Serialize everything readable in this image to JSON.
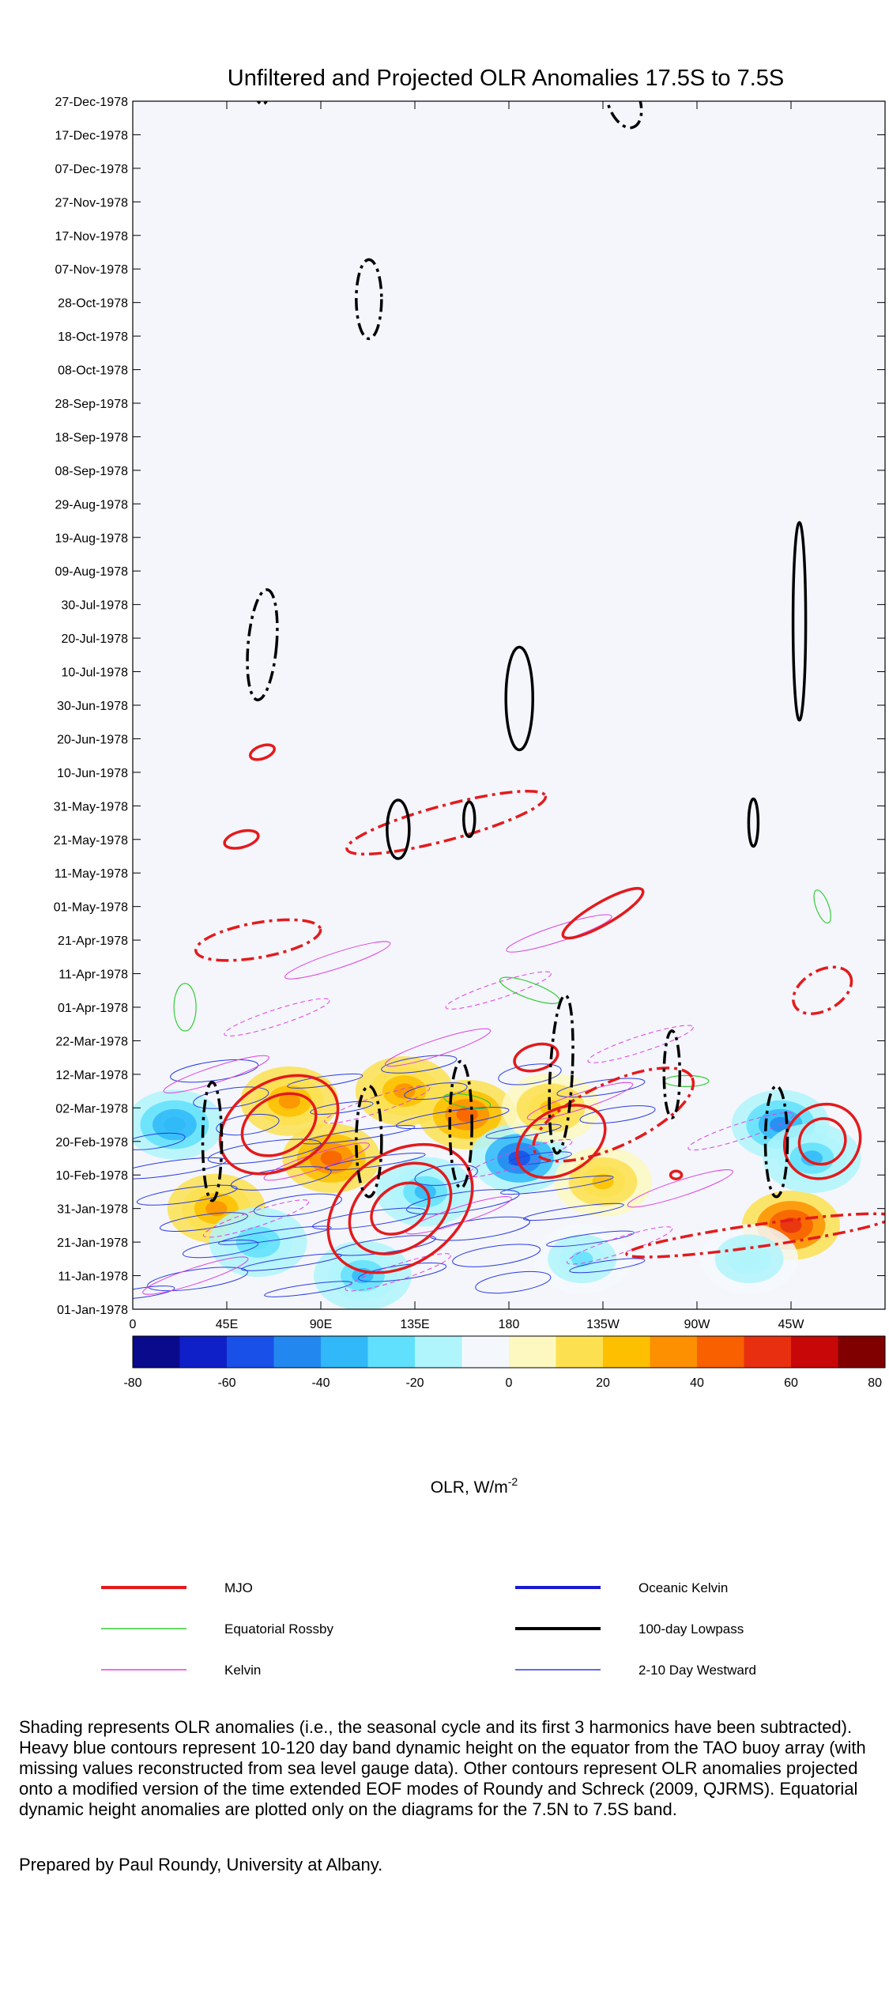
{
  "chart_data": {
    "type": "heatmap",
    "title": "Unfiltered and Projected OLR Anomalies 17.5S to 7.5S",
    "y_dates": [
      "01-Jan-1978",
      "11-Jan-1978",
      "21-Jan-1978",
      "31-Jan-1978",
      "10-Feb-1978",
      "20-Feb-1978",
      "02-Mar-1978",
      "12-Mar-1978",
      "22-Mar-1978",
      "01-Apr-1978",
      "11-Apr-1978",
      "21-Apr-1978",
      "01-May-1978",
      "11-May-1978",
      "21-May-1978",
      "31-May-1978",
      "10-Jun-1978",
      "20-Jun-1978",
      "30-Jun-1978",
      "10-Jul-1978",
      "20-Jul-1978",
      "30-Jul-1978",
      "09-Aug-1978",
      "19-Aug-1978",
      "29-Aug-1978",
      "08-Sep-1978",
      "18-Sep-1978",
      "28-Sep-1978",
      "08-Oct-1978",
      "18-Oct-1978",
      "28-Oct-1978",
      "07-Nov-1978",
      "17-Nov-1978",
      "27-Nov-1978",
      "07-Dec-1978",
      "17-Dec-1978",
      "27-Dec-1978"
    ],
    "x_ticks": [
      "0",
      "45E",
      "90E",
      "135E",
      "180",
      "135W",
      "90W",
      "45W"
    ],
    "x_range_deg": [
      0,
      360
    ],
    "colorbar": {
      "label": "OLR, W/m",
      "label_superscript": "-2",
      "ticks": [
        "-80",
        "-60",
        "-40",
        "-20",
        "0",
        "20",
        "40",
        "60",
        "80"
      ],
      "range": [
        -80,
        80
      ],
      "colors": [
        "#0a0a8c",
        "#1020c8",
        "#1850e8",
        "#2288f0",
        "#30b8f8",
        "#60e0fc",
        "#b0f4fc",
        "#f4f8fc",
        "#fcf8c0",
        "#fce050",
        "#fcc000",
        "#fc9000",
        "#f86000",
        "#e83010",
        "#c80808",
        "#800000"
      ]
    },
    "anomaly_regions": [
      {
        "lon": 20,
        "day": 55,
        "value": -40
      },
      {
        "lon": 40,
        "day": 30,
        "value": 30
      },
      {
        "lon": 60,
        "day": 20,
        "value": -30
      },
      {
        "lon": 75,
        "day": 62,
        "value": 35
      },
      {
        "lon": 95,
        "day": 45,
        "value": 40
      },
      {
        "lon": 110,
        "day": 10,
        "value": -35
      },
      {
        "lon": 130,
        "day": 65,
        "value": 30
      },
      {
        "lon": 140,
        "day": 35,
        "value": -35
      },
      {
        "lon": 160,
        "day": 58,
        "value": 45
      },
      {
        "lon": 185,
        "day": 45,
        "value": -55
      },
      {
        "lon": 200,
        "day": 60,
        "value": 25
      },
      {
        "lon": 215,
        "day": 15,
        "value": -25
      },
      {
        "lon": 225,
        "day": 38,
        "value": 20
      },
      {
        "lon": 310,
        "day": 55,
        "value": -45
      },
      {
        "lon": 315,
        "day": 25,
        "value": 55
      },
      {
        "lon": 325,
        "day": 45,
        "value": -35
      },
      {
        "lon": 295,
        "day": 15,
        "value": -20
      }
    ]
  },
  "legend": {
    "items": [
      {
        "label": "MJO",
        "color": "#e41a1c",
        "weight": "heavy"
      },
      {
        "label": "Equatorial Rossby",
        "color": "#33cc33",
        "weight": "thin"
      },
      {
        "label": "Kelvin",
        "color": "#e040e0",
        "weight": "thin"
      },
      {
        "label": "Oceanic Kelvin",
        "color": "#1a1ad0",
        "weight": "heavy"
      },
      {
        "label": "100-day Lowpass",
        "color": "#000000",
        "weight": "heavy"
      },
      {
        "label": "2-10 Day Westward",
        "color": "#2a3ae0",
        "weight": "thin"
      }
    ]
  },
  "caption": "Shading represents OLR anomalies (i.e., the seasonal cycle and its first 3 harmonics have been subtracted). Heavy blue contours represent 10-120 day band dynamic height on the equator from the TAO buoy array (with missing values reconstructed from sea level gauge data). Other contours represent OLR anomalies projected onto a modified version of the time extended EOF modes of Roundy and Schreck (2009, QJRMS). Equatorial dynamic height anomalies are plotted only on the diagrams for the 7.5N to 7.5S band.",
  "prepared_by": "Prepared by Paul Roundy, University at Albany."
}
